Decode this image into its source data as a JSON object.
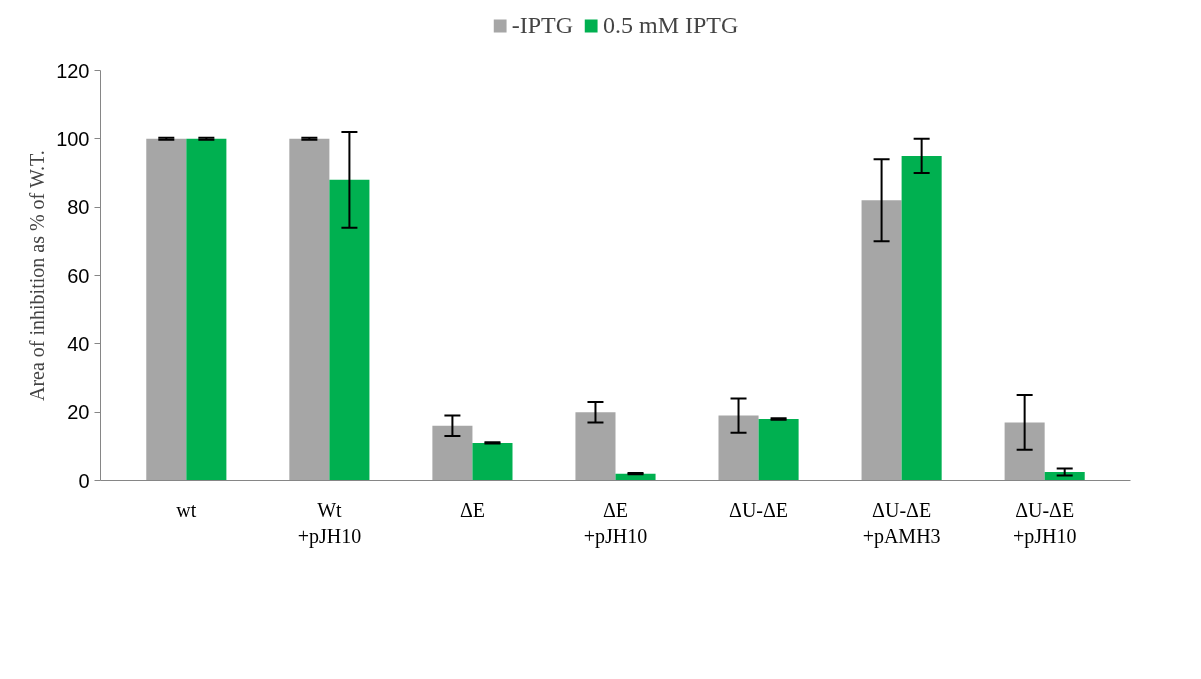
{
  "chart_data": {
    "type": "bar",
    "ylabel": "Area of inhibition as % of W.T.",
    "categories": [
      "wt",
      "Wt\n+pJH10",
      "ΔE",
      "ΔE\n+pJH10",
      "ΔU-ΔE",
      "ΔU-ΔE\n+pAMH3",
      "ΔU-ΔE\n+pJH10"
    ],
    "series": [
      {
        "name": "-IPTG",
        "color": "#a6a6a6",
        "values": [
          100,
          100,
          16,
          20,
          19,
          82,
          17
        ],
        "errors": [
          0.3,
          0.3,
          3,
          3,
          5,
          12,
          8
        ]
      },
      {
        "name": "0.5 mM IPTG",
        "color": "#00b050",
        "values": [
          100,
          88,
          11,
          2,
          18,
          95,
          2.5
        ],
        "errors": [
          0.3,
          14,
          0.2,
          0.2,
          0.2,
          5,
          1
        ]
      }
    ],
    "ylim": [
      0,
      120
    ],
    "yticks": [
      0,
      20,
      40,
      60,
      80,
      100,
      120
    ],
    "grid": false,
    "legend": "top"
  }
}
